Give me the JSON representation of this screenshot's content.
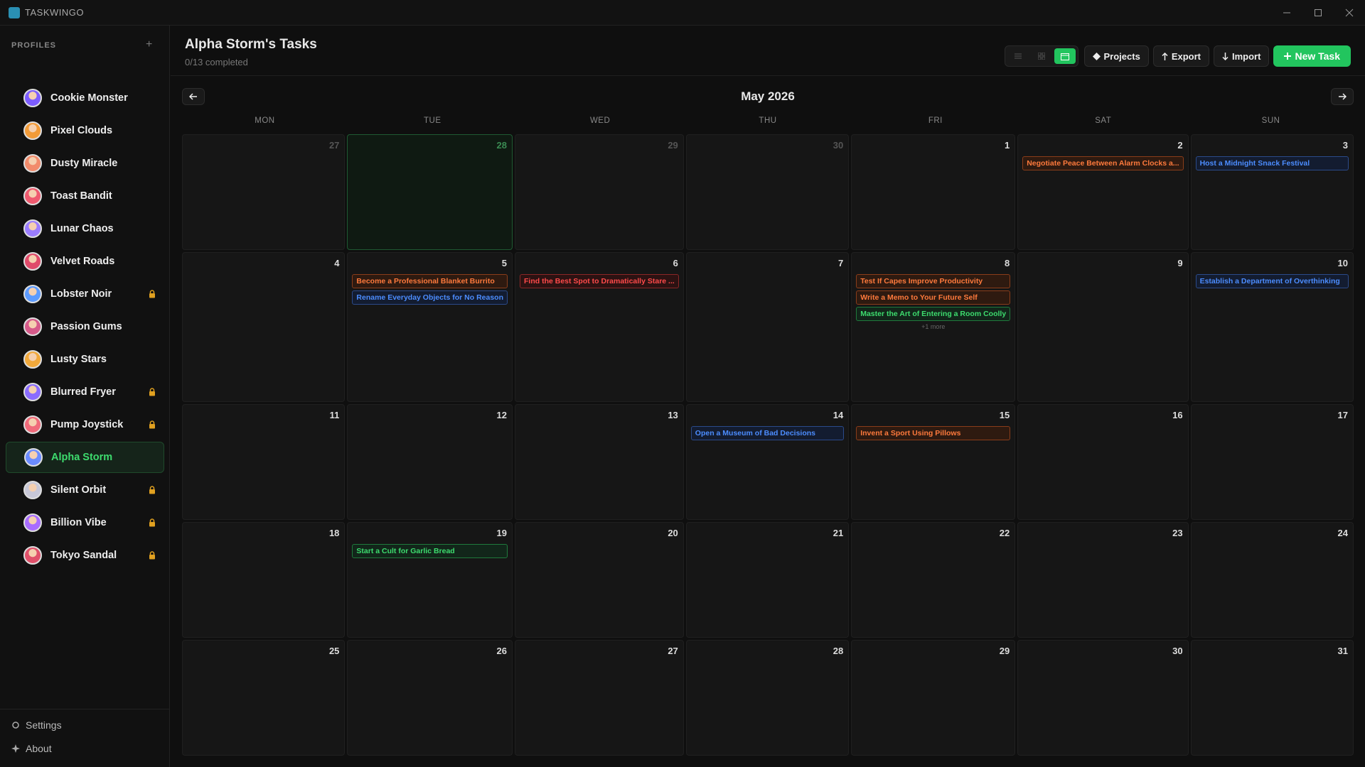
{
  "app": {
    "name": "TASKWINGO"
  },
  "sidebar": {
    "heading": "PROFILES",
    "active": 11,
    "profiles": [
      {
        "name": "Cookie Monster",
        "locked": false
      },
      {
        "name": "Pixel Clouds",
        "locked": false
      },
      {
        "name": "Dusty Miracle",
        "locked": false
      },
      {
        "name": "Toast Bandit",
        "locked": false
      },
      {
        "name": "Lunar Chaos",
        "locked": false
      },
      {
        "name": "Velvet Roads",
        "locked": false
      },
      {
        "name": "Lobster Noir",
        "locked": true
      },
      {
        "name": "Passion Gums",
        "locked": false
      },
      {
        "name": "Lusty Stars",
        "locked": false
      },
      {
        "name": "Blurred Fryer",
        "locked": true
      },
      {
        "name": "Pump Joystick",
        "locked": true
      },
      {
        "name": "Alpha Storm",
        "locked": false
      },
      {
        "name": "Silent Orbit",
        "locked": true
      },
      {
        "name": "Billion Vibe",
        "locked": true
      },
      {
        "name": "Tokyo Sandal",
        "locked": true
      }
    ],
    "footer": [
      "Settings",
      "About"
    ]
  },
  "header": {
    "title": "Alpha Storm's Tasks",
    "subtitle": "0/13 completed",
    "buttons": [
      "Projects",
      "Export",
      "Import",
      "New Task"
    ]
  },
  "calendar": {
    "month": "May 2026",
    "weekdays": [
      "MON",
      "TUE",
      "WED",
      "THU",
      "FRI",
      "SAT",
      "SUN"
    ],
    "weeks": [
      [
        {
          "day": 27,
          "outside": true,
          "tasks": []
        },
        {
          "day": 28,
          "outside": true,
          "today": true,
          "tasks": []
        },
        {
          "day": 29,
          "outside": true,
          "tasks": []
        },
        {
          "day": 30,
          "outside": true,
          "tasks": []
        },
        {
          "day": 1,
          "tasks": []
        },
        {
          "day": 2,
          "tasks": [
            {
              "title": "Negotiate Peace Between Alarm Clocks a...",
              "color": "orange"
            }
          ]
        },
        {
          "day": 3,
          "tasks": [
            {
              "title": "Host a Midnight Snack Festival",
              "color": "blue"
            }
          ]
        }
      ],
      [
        {
          "day": 4,
          "tasks": []
        },
        {
          "day": 5,
          "tasks": [
            {
              "title": "Become a Professional Blanket Burrito",
              "color": "orange"
            },
            {
              "title": "Rename Everyday Objects for No Reason",
              "color": "blue"
            }
          ]
        },
        {
          "day": 6,
          "tasks": [
            {
              "title": "Find the Best Spot to Dramatically Stare ...",
              "color": "red"
            }
          ]
        },
        {
          "day": 7,
          "tasks": []
        },
        {
          "day": 8,
          "tasks": [
            {
              "title": "Test If Capes Improve Productivity",
              "color": "orange"
            },
            {
              "title": "Write a Memo to Your Future Self",
              "color": "orange"
            },
            {
              "title": "Master the Art of Entering a Room Coolly",
              "color": "green"
            }
          ],
          "more": "+1 more"
        },
        {
          "day": 9,
          "tasks": []
        },
        {
          "day": 10,
          "tasks": [
            {
              "title": "Establish a Department of Overthinking",
              "color": "blue"
            }
          ]
        }
      ],
      [
        {
          "day": 11,
          "tasks": []
        },
        {
          "day": 12,
          "tasks": []
        },
        {
          "day": 13,
          "tasks": []
        },
        {
          "day": 14,
          "tasks": [
            {
              "title": "Open a Museum of Bad Decisions",
              "color": "blue"
            }
          ]
        },
        {
          "day": 15,
          "tasks": [
            {
              "title": "Invent a Sport Using Pillows",
              "color": "orange"
            }
          ]
        },
        {
          "day": 16,
          "tasks": []
        },
        {
          "day": 17,
          "tasks": []
        }
      ],
      [
        {
          "day": 18,
          "tasks": []
        },
        {
          "day": 19,
          "tasks": [
            {
              "title": "Start a Cult for Garlic Bread",
              "color": "green"
            }
          ]
        },
        {
          "day": 20,
          "tasks": []
        },
        {
          "day": 21,
          "tasks": []
        },
        {
          "day": 22,
          "tasks": []
        },
        {
          "day": 23,
          "tasks": []
        },
        {
          "day": 24,
          "tasks": []
        }
      ],
      [
        {
          "day": 25,
          "tasks": []
        },
        {
          "day": 26,
          "tasks": []
        },
        {
          "day": 27,
          "tasks": []
        },
        {
          "day": 28,
          "tasks": []
        },
        {
          "day": 29,
          "tasks": []
        },
        {
          "day": 30,
          "tasks": []
        },
        {
          "day": 31,
          "tasks": []
        }
      ]
    ]
  }
}
